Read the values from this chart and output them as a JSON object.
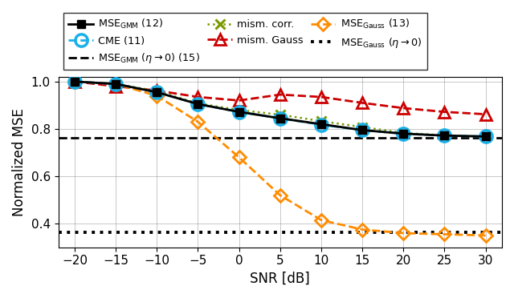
{
  "snr": [
    -20,
    -15,
    -10,
    -5,
    0,
    5,
    10,
    15,
    20,
    25,
    30
  ],
  "MSE_GMM": [
    1.0,
    0.99,
    0.955,
    0.905,
    0.872,
    0.845,
    0.82,
    0.795,
    0.78,
    0.772,
    0.768
  ],
  "CME": [
    1.0,
    0.99,
    0.955,
    0.905,
    0.872,
    0.845,
    0.818,
    0.795,
    0.78,
    0.772,
    0.768
  ],
  "mism_corr": [
    1.0,
    0.99,
    0.96,
    0.908,
    0.88,
    0.86,
    0.833,
    0.808,
    0.783,
    0.773,
    0.768
  ],
  "mism_Gauss": [
    1.0,
    0.98,
    0.962,
    0.935,
    0.92,
    0.945,
    0.935,
    0.91,
    0.888,
    0.872,
    0.862
  ],
  "MSE_Gauss": [
    1.0,
    0.99,
    0.94,
    0.83,
    0.68,
    0.52,
    0.415,
    0.375,
    0.36,
    0.355,
    0.35
  ],
  "MSE_GMM_eta0": 0.762,
  "MSE_Gauss_eta0": 0.362,
  "xlabel": "SNR [dB]",
  "ylabel": "Normalized MSE",
  "ylim": [
    0.3,
    1.02
  ],
  "xlim": [
    -22,
    32
  ],
  "xticks": [
    -20,
    -15,
    -10,
    -5,
    0,
    5,
    10,
    15,
    20,
    25,
    30
  ],
  "yticks": [
    0.4,
    0.6,
    0.8,
    1.0
  ],
  "color_black": "#000000",
  "color_blue": "#1ab0e8",
  "color_red": "#cc0000",
  "color_orange": "#ff8c00",
  "color_green": "#7a9a00"
}
